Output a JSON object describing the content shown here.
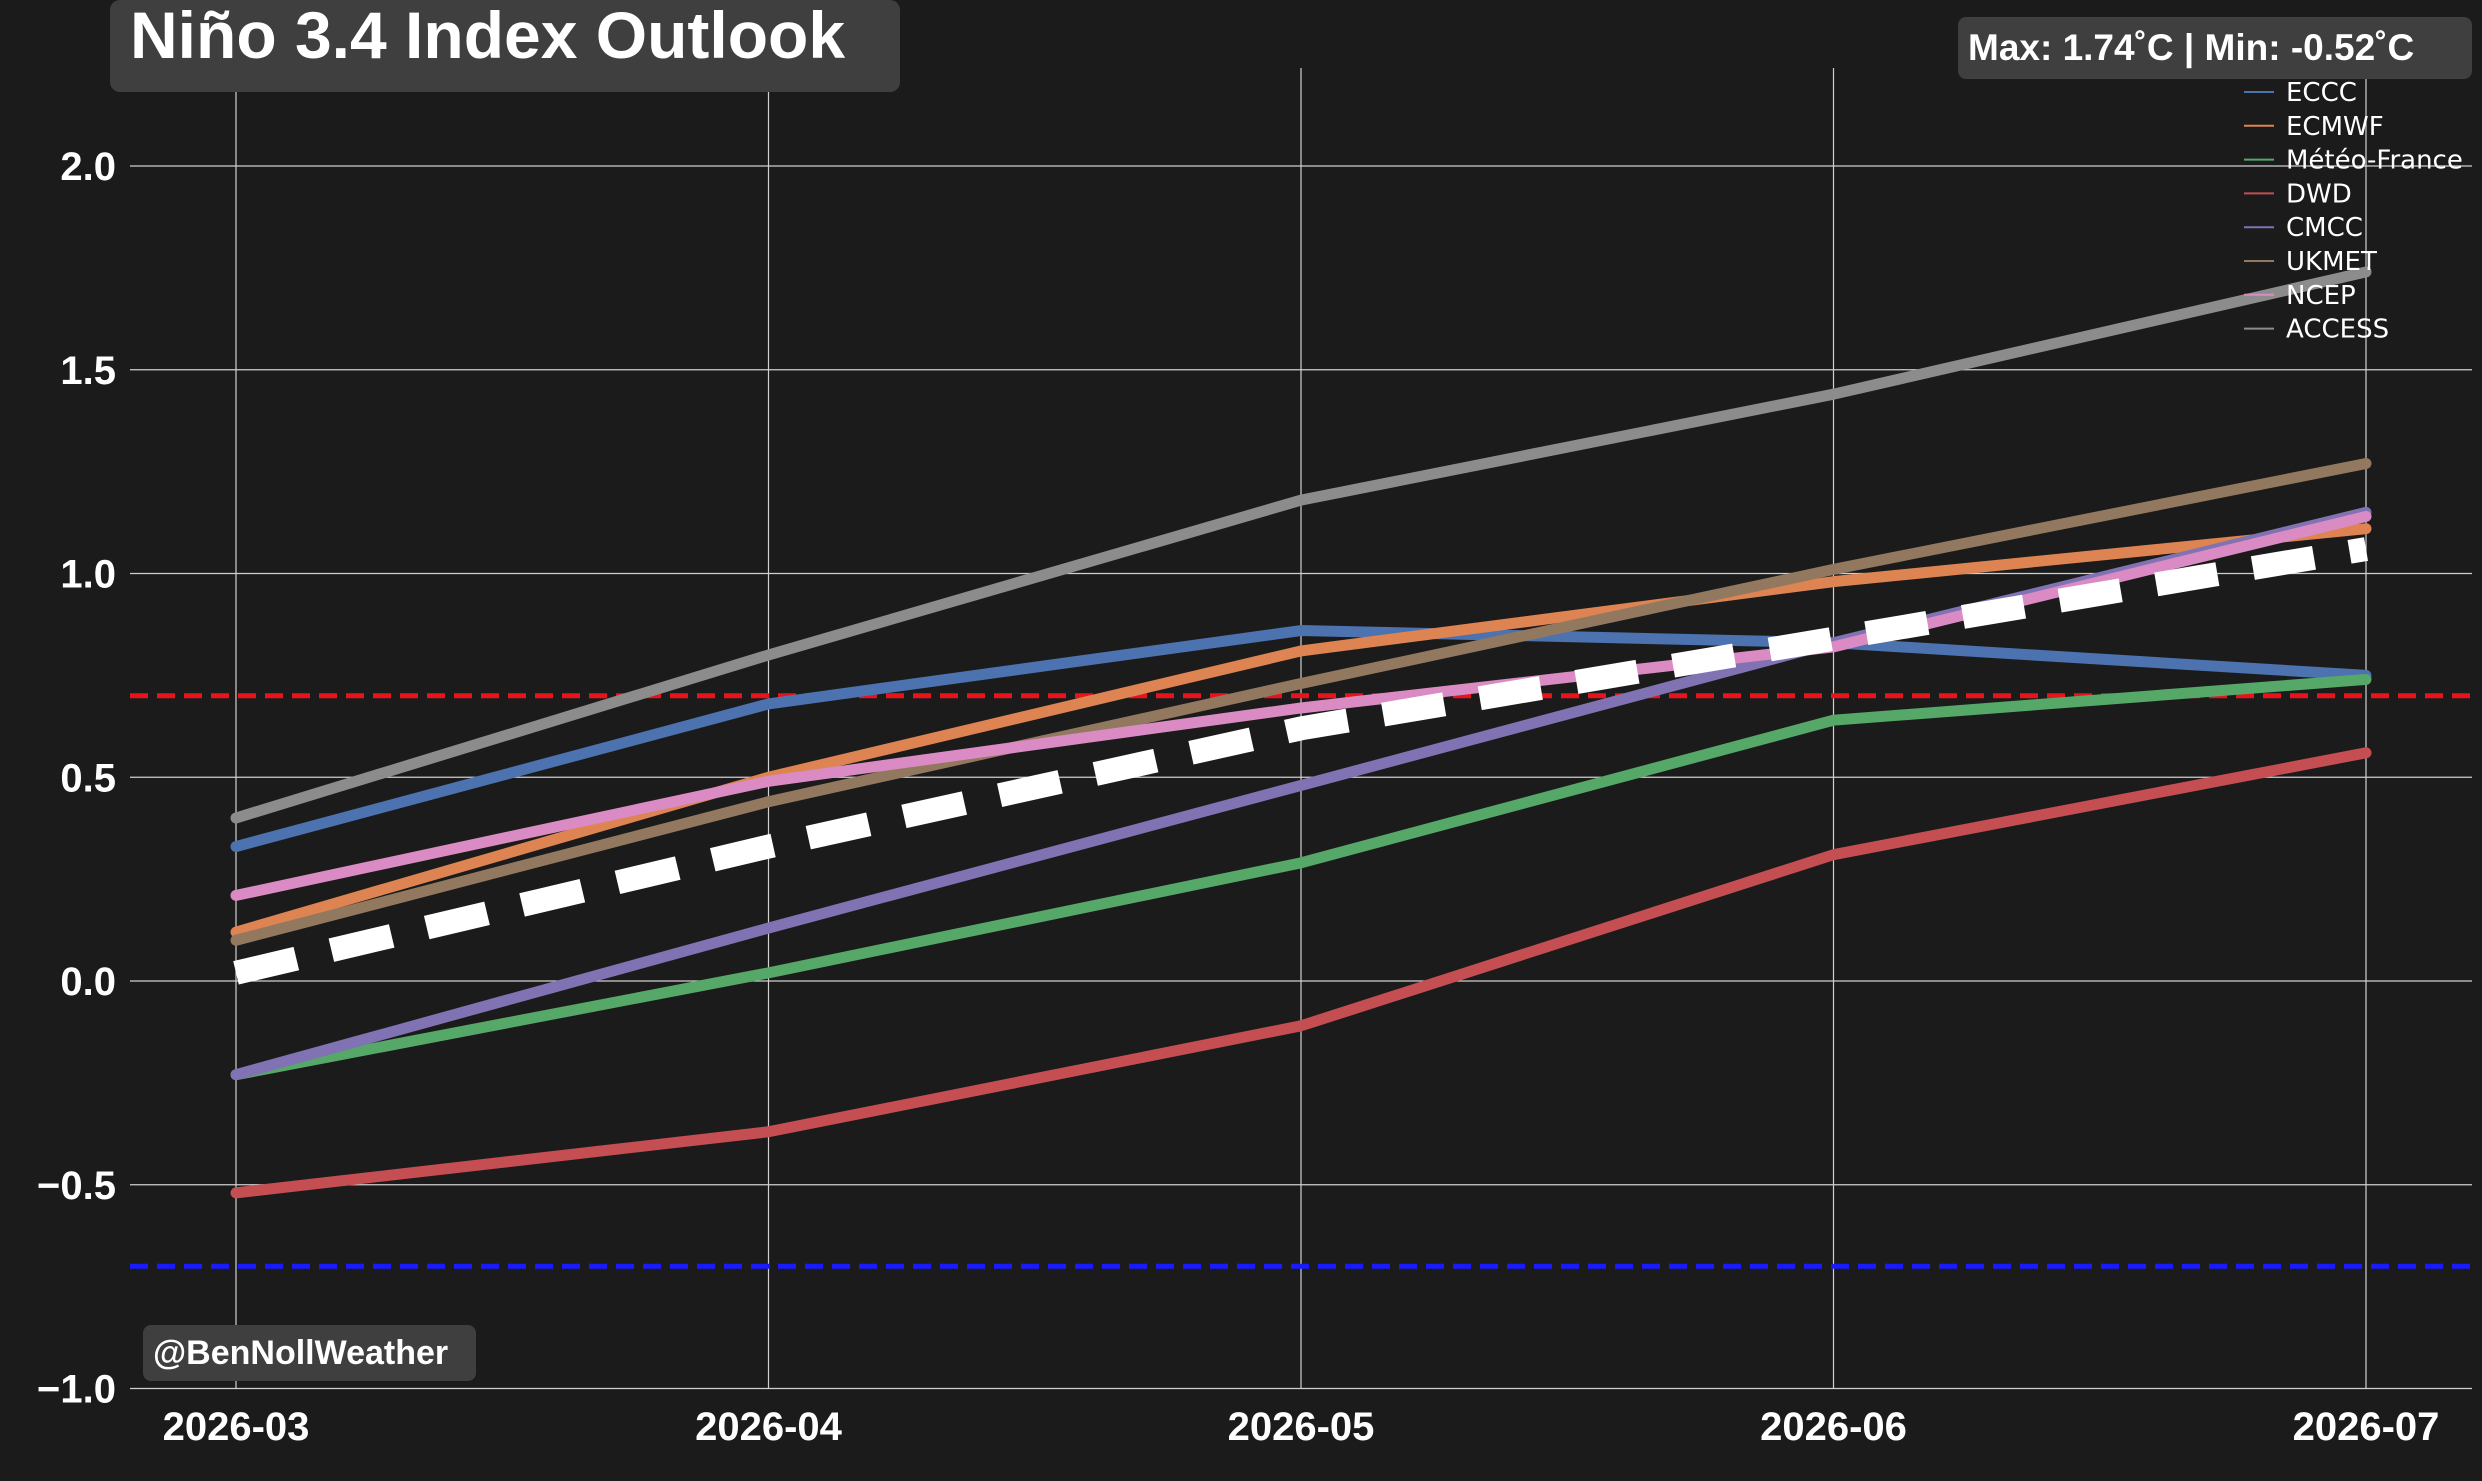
{
  "chart_data": {
    "type": "line",
    "title": "Niño 3.4 Index Outlook",
    "stats_box": "Max: 1.74˚C | Min: -0.52˚C",
    "watermark": "@BenNollWeather",
    "x": [
      "2026-03",
      "2026-04",
      "2026-05",
      "2026-06",
      "2026-07"
    ],
    "y_ticks": [
      "−1.0",
      "−0.5",
      "0.0",
      "0.5",
      "1.0",
      "1.5",
      "2.0"
    ],
    "ylim": [
      -1.0,
      2.2
    ],
    "grid": true,
    "legend_position": "top-right",
    "series": [
      {
        "name": "ECCC",
        "color": "#4c72b0",
        "values": [
          0.33,
          0.68,
          0.86,
          0.83,
          0.75
        ]
      },
      {
        "name": "ECMWF",
        "color": "#dd8452",
        "values": [
          0.12,
          0.5,
          0.81,
          0.98,
          1.11
        ]
      },
      {
        "name": "Météo-France",
        "color": "#55a868",
        "values": [
          -0.23,
          0.02,
          0.29,
          0.64,
          0.74
        ]
      },
      {
        "name": "DWD",
        "color": "#c44e52",
        "values": [
          -0.52,
          -0.37,
          -0.11,
          0.31,
          0.56
        ]
      },
      {
        "name": "CMCC",
        "color": "#8172b3",
        "values": [
          -0.23,
          0.13,
          0.48,
          0.83,
          1.15
        ]
      },
      {
        "name": "UKMET",
        "color": "#937860",
        "values": [
          0.1,
          0.44,
          0.73,
          1.01,
          1.27
        ]
      },
      {
        "name": "NCEP",
        "color": "#da8bc3",
        "values": [
          0.21,
          0.49,
          0.67,
          0.82,
          1.14
        ]
      },
      {
        "name": "ACCESS",
        "color": "#8c8c8c",
        "values": [
          0.4,
          0.8,
          1.18,
          1.44,
          1.74
        ]
      }
    ],
    "mean_line": {
      "color": "#ffffff",
      "values": [
        0.02,
        0.33,
        0.62,
        0.84,
        1.06
      ]
    },
    "reference_lines": [
      {
        "value": 0.7,
        "color": "#e8141b"
      },
      {
        "value": -0.7,
        "color": "#1a1aff"
      }
    ]
  }
}
